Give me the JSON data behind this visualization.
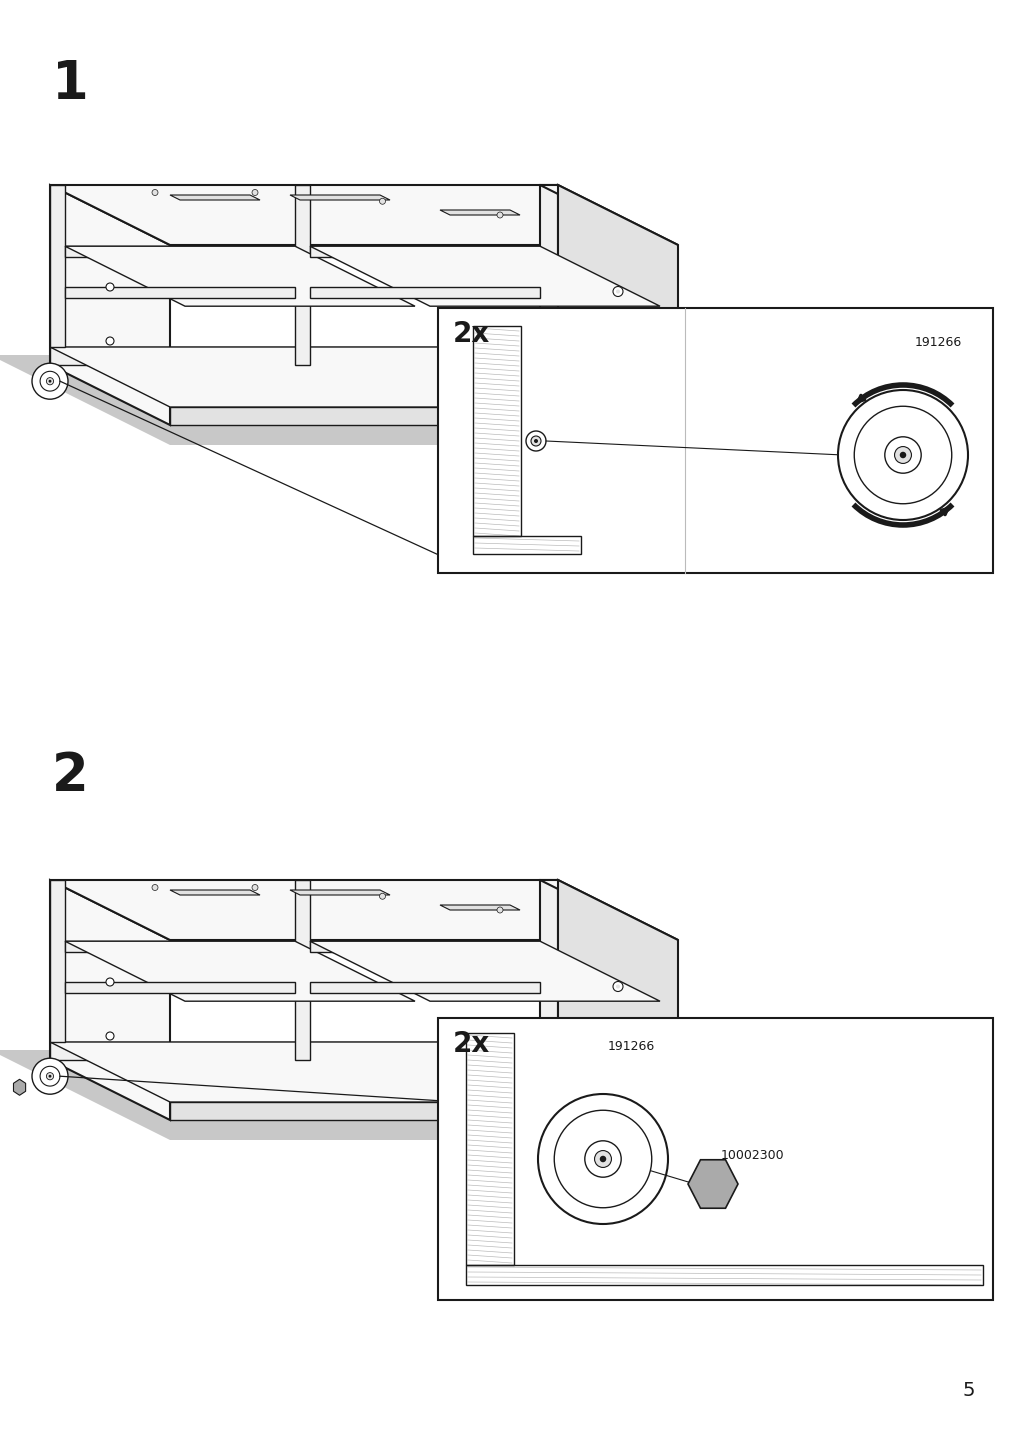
{
  "page_number": "5",
  "background_color": "#ffffff",
  "step1_number": "1",
  "step2_number": "2",
  "inset1_label": "2x",
  "inset2_label": "2x",
  "part_id1": "191266",
  "part_id2_a": "191266",
  "part_id2_b": "10002300",
  "shadow_color": "#c8c8c8",
  "line_color": "#1a1a1a",
  "light_fill": "#f8f8f8",
  "mid_fill": "#e2e2e2",
  "dark_fill": "#aaaaaa",
  "frame_fill": "#f0f0f0",
  "step_number_fontsize": 38,
  "label_fontsize": 20,
  "part_id_fontsize": 9,
  "page_number_fontsize": 14
}
